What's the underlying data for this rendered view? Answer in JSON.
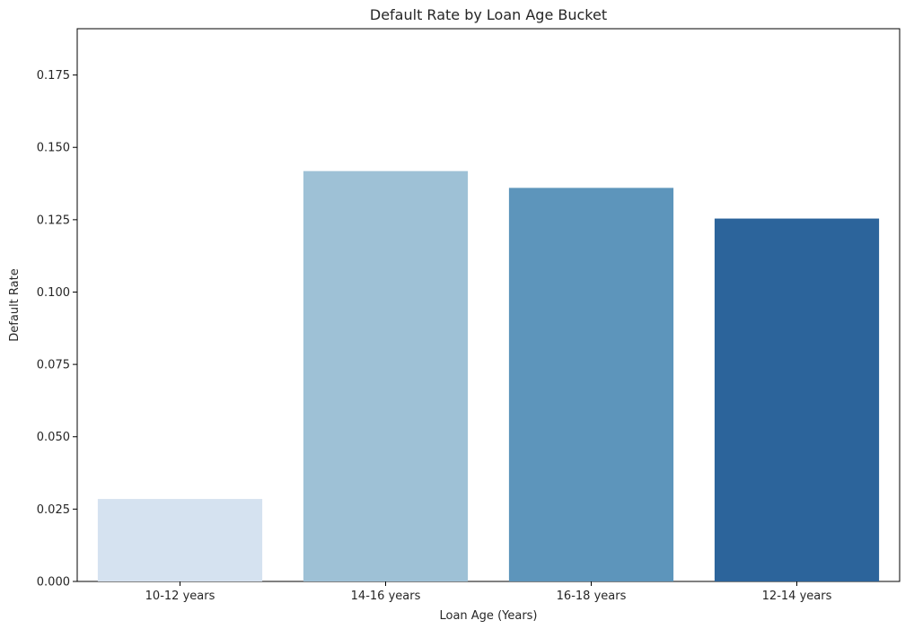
{
  "chart_data": {
    "type": "bar",
    "title": "Default Rate by Loan Age Bucket",
    "xlabel": "Loan Age (Years)",
    "ylabel": "Default Rate",
    "categories": [
      "10-12 years",
      "14-16 years",
      "16-18 years",
      "12-14 years"
    ],
    "values": [
      0.0285,
      0.1418,
      0.136,
      0.1254
    ],
    "colors": [
      "#d5e2f0",
      "#9ec1d6",
      "#5d95bb",
      "#2c649b"
    ],
    "ylim": [
      0,
      0.191
    ],
    "yticks": [
      0.0,
      0.025,
      0.05,
      0.075,
      0.1,
      0.125,
      0.15,
      0.175
    ],
    "ytick_labels": [
      "0.000",
      "0.025",
      "0.050",
      "0.075",
      "0.100",
      "0.125",
      "0.150",
      "0.175"
    ],
    "grid": false,
    "legend": "none"
  }
}
